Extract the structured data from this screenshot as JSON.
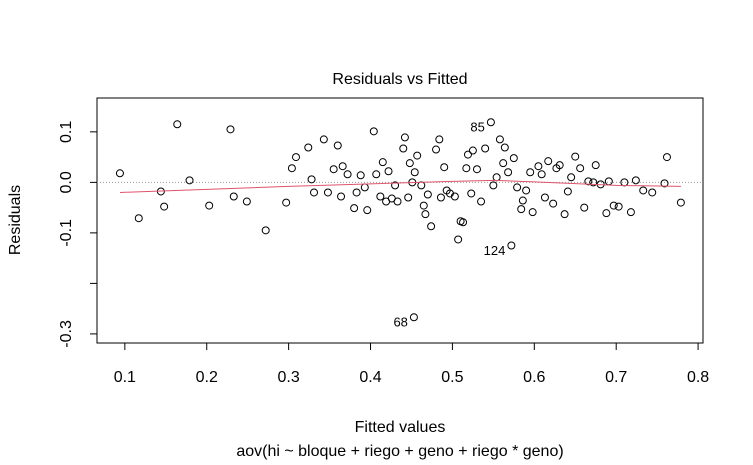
{
  "chart_data": {
    "type": "scatter",
    "title": "Residuals vs Fitted",
    "x_label": "Fitted values",
    "y_label": "Residuals",
    "subtitle": "aov(hi ~ bloque + riego + geno + riego * geno)",
    "x": [
      0.094,
      0.117,
      0.144,
      0.148,
      0.164,
      0.179,
      0.203,
      0.229,
      0.233,
      0.249,
      0.272,
      0.297,
      0.304,
      0.309,
      0.324,
      0.328,
      0.331,
      0.343,
      0.348,
      0.355,
      0.36,
      0.364,
      0.366,
      0.372,
      0.38,
      0.383,
      0.388,
      0.393,
      0.396,
      0.404,
      0.407,
      0.412,
      0.415,
      0.419,
      0.422,
      0.426,
      0.43,
      0.433,
      0.44,
      0.442,
      0.446,
      0.448,
      0.451,
      0.454,
      0.457,
      0.453,
      0.462,
      0.465,
      0.467,
      0.47,
      0.474,
      0.48,
      0.484,
      0.486,
      0.49,
      0.493,
      0.497,
      0.503,
      0.507,
      0.51,
      0.513,
      0.517,
      0.519,
      0.523,
      0.525,
      0.53,
      0.535,
      0.54,
      0.547,
      0.55,
      0.554,
      0.558,
      0.562,
      0.564,
      0.568,
      0.572,
      0.575,
      0.579,
      0.584,
      0.586,
      0.59,
      0.595,
      0.598,
      0.605,
      0.609,
      0.613,
      0.617,
      0.623,
      0.627,
      0.631,
      0.637,
      0.641,
      0.645,
      0.65,
      0.656,
      0.661,
      0.666,
      0.672,
      0.675,
      0.681,
      0.688,
      0.691,
      0.697,
      0.703,
      0.71,
      0.718,
      0.724,
      0.733,
      0.744,
      0.762,
      0.759,
      0.779
    ],
    "values": [
      0.018,
      -0.071,
      -0.018,
      -0.048,
      0.115,
      0.004,
      -0.046,
      0.105,
      -0.028,
      -0.038,
      -0.095,
      -0.04,
      0.028,
      0.05,
      0.069,
      0.006,
      -0.02,
      0.085,
      -0.02,
      0.026,
      0.073,
      -0.028,
      0.032,
      0.016,
      -0.051,
      -0.02,
      0.014,
      -0.01,
      -0.055,
      0.101,
      0.016,
      -0.028,
      0.04,
      -0.038,
      0.022,
      -0.032,
      -0.006,
      -0.038,
      0.067,
      0.089,
      -0.03,
      0.038,
      0.0,
      0.02,
      0.053,
      -0.267,
      -0.006,
      -0.046,
      -0.063,
      -0.024,
      -0.087,
      0.065,
      0.085,
      -0.03,
      0.03,
      -0.016,
      -0.022,
      -0.028,
      -0.113,
      -0.077,
      -0.079,
      0.028,
      0.055,
      -0.022,
      0.063,
      0.026,
      -0.038,
      0.067,
      0.119,
      -0.006,
      0.01,
      0.085,
      0.038,
      0.069,
      0.02,
      -0.125,
      0.048,
      -0.01,
      -0.053,
      -0.036,
      -0.016,
      0.02,
      -0.059,
      0.032,
      0.016,
      -0.03,
      0.042,
      -0.042,
      0.028,
      0.034,
      -0.063,
      -0.018,
      0.01,
      0.051,
      0.028,
      -0.05,
      0.002,
      0.0,
      0.034,
      -0.004,
      -0.061,
      0.002,
      -0.046,
      -0.048,
      0.0,
      -0.059,
      0.004,
      -0.016,
      -0.02,
      0.05,
      -0.002,
      -0.04
    ],
    "color": "#000000",
    "smooth": {
      "color": "#df536b",
      "x": [
        0.094,
        0.2,
        0.3,
        0.4,
        0.5,
        0.55,
        0.6,
        0.7,
        0.779
      ],
      "values": [
        -0.02,
        -0.014,
        -0.008,
        -0.003,
        0.002,
        0.004,
        0.001,
        -0.006,
        -0.008
      ]
    },
    "reference_line": 0,
    "annotations": [
      {
        "text": "85",
        "x": 0.547,
        "y": 0.119
      },
      {
        "text": "124",
        "x": 0.572,
        "y": -0.125
      },
      {
        "text": "68",
        "x": 0.453,
        "y": -0.267
      }
    ],
    "xlim": [
      0.066,
      0.806
    ],
    "ylim": [
      -0.318,
      0.167
    ],
    "xticks": [
      0.1,
      0.2,
      0.3,
      0.4,
      0.5,
      0.6,
      0.7,
      0.8
    ],
    "yticks": [
      -0.3,
      {
        "value": -0.2,
        "label": null
      },
      -0.1,
      {
        "value": 0,
        "label": "0.0"
      },
      0.1
    ]
  }
}
